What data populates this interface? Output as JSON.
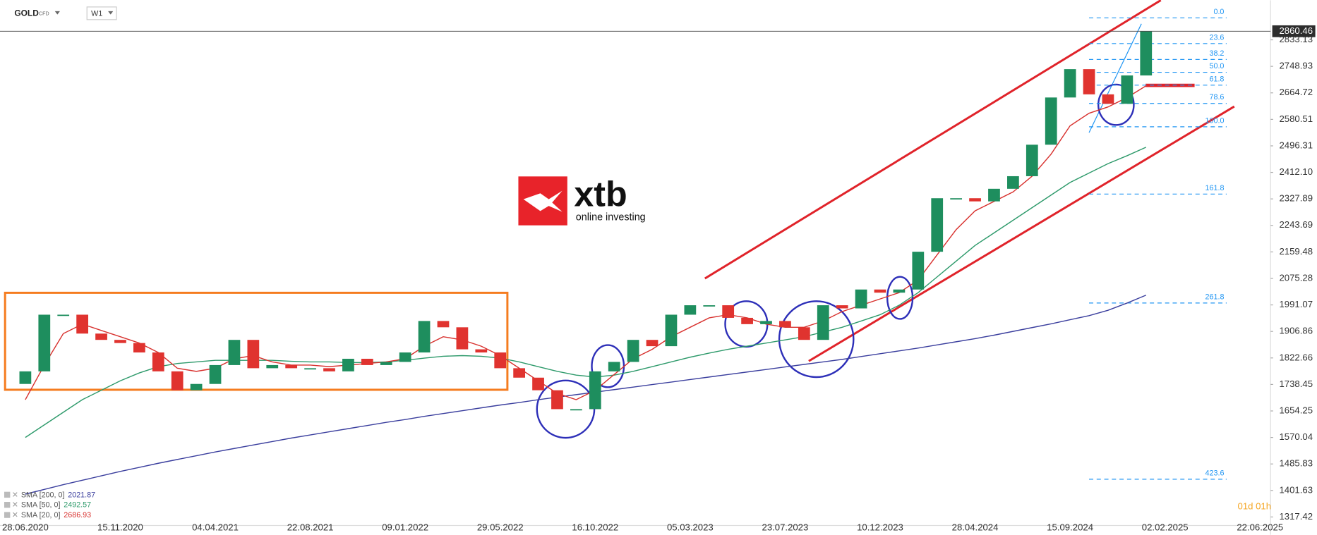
{
  "header": {
    "symbol": "GOLD",
    "kind": "CFD",
    "interval": "W1"
  },
  "logo": {
    "brand": "xtb",
    "tagline": "online investing"
  },
  "countdown": "01d 01h",
  "chart_data": {
    "type": "candlestick",
    "up_color": "#1e8e5e",
    "down_color": "#e0332f",
    "categories": [
      "28.06.2020",
      null,
      null,
      null,
      null,
      "15.11.2020",
      null,
      null,
      null,
      null,
      "04.04.2021",
      null,
      null,
      null,
      null,
      "22.08.2021",
      null,
      null,
      null,
      null,
      "09.01.2022",
      null,
      null,
      null,
      null,
      "29.05.2022",
      null,
      null,
      null,
      null,
      "16.10.2022",
      null,
      null,
      null,
      null,
      "05.03.2023",
      null,
      null,
      null,
      null,
      "23.07.2023",
      null,
      null,
      null,
      null,
      "10.12.2023",
      null,
      null,
      null,
      null,
      "28.04.2024",
      null,
      null,
      null,
      null,
      "15.09.2024",
      null,
      null,
      null,
      null,
      "02.02.2025",
      null,
      null,
      null,
      null,
      "22.06.2025"
    ],
    "open": [
      1740,
      1780,
      1960,
      1960,
      1900,
      1880,
      1870,
      1840,
      1780,
      1720,
      1740,
      1800,
      1880,
      1790,
      1800,
      1790,
      1790,
      1780,
      1820,
      1800,
      1810,
      1840,
      1940,
      1920,
      1850,
      1840,
      1790,
      1760,
      1720,
      1660,
      1660,
      1780,
      1810,
      1880,
      1860,
      1960,
      1990,
      1990,
      1950,
      1930,
      1940,
      1920,
      1880,
      1990,
      1980,
      2040,
      2030,
      2040,
      2160,
      2330,
      2330,
      2320,
      2360,
      2400,
      2500,
      2650,
      2740,
      2660,
      2630,
      2720,
      null,
      null,
      null,
      null,
      null,
      null
    ],
    "close": [
      1780,
      1960,
      1960,
      1900,
      1880,
      1870,
      1840,
      1780,
      1720,
      1740,
      1800,
      1880,
      1790,
      1800,
      1790,
      1790,
      1780,
      1820,
      1800,
      1810,
      1840,
      1940,
      1920,
      1850,
      1840,
      1790,
      1760,
      1720,
      1660,
      1660,
      1780,
      1810,
      1880,
      1860,
      1960,
      1990,
      1990,
      1950,
      1930,
      1940,
      1920,
      1880,
      1990,
      1980,
      2040,
      2030,
      2040,
      2160,
      2330,
      2330,
      2320,
      2360,
      2400,
      2500,
      2650,
      2740,
      2660,
      2630,
      2720,
      2860,
      null,
      null,
      null,
      null,
      null,
      null
    ],
    "series": [
      {
        "name": "SMA [200, 0]",
        "color": "#3b3f9e",
        "last": 2021.87,
        "values": [
          1390,
          1405,
          1420,
          1434,
          1448,
          1462,
          1475,
          1488,
          1500,
          1512,
          1524,
          1535,
          1546,
          1557,
          1568,
          1578,
          1588,
          1598,
          1608,
          1618,
          1627,
          1637,
          1646,
          1655,
          1664,
          1673,
          1681,
          1690,
          1698,
          1706,
          1714,
          1722,
          1730,
          1738,
          1746,
          1754,
          1762,
          1770,
          1778,
          1786,
          1794,
          1802,
          1810,
          1818,
          1827,
          1836,
          1845,
          1854,
          1864,
          1874,
          1884,
          1895,
          1907,
          1919,
          1931,
          1944,
          1957,
          1974,
          1997,
          2022,
          null,
          null,
          null,
          null,
          null,
          null
        ]
      },
      {
        "name": "SMA [50, 0]",
        "color": "#2e9a6b",
        "last": 2492.57,
        "values": [
          1570,
          1610,
          1650,
          1690,
          1720,
          1750,
          1775,
          1795,
          1805,
          1810,
          1815,
          1815,
          1815,
          1815,
          1812,
          1810,
          1810,
          1808,
          1808,
          1810,
          1815,
          1822,
          1828,
          1830,
          1828,
          1822,
          1810,
          1795,
          1780,
          1768,
          1762,
          1768,
          1780,
          1795,
          1810,
          1825,
          1838,
          1850,
          1860,
          1870,
          1880,
          1890,
          1905,
          1920,
          1940,
          1960,
          1990,
          2030,
          2080,
          2130,
          2180,
          2220,
          2260,
          2300,
          2340,
          2380,
          2410,
          2440,
          2465,
          2492,
          null,
          null,
          null,
          null,
          null,
          null
        ]
      },
      {
        "name": "SMA [20, 0]",
        "color": "#d8322f",
        "last": 2686.93,
        "values": [
          1690,
          1800,
          1900,
          1930,
          1910,
          1890,
          1870,
          1840,
          1790,
          1780,
          1790,
          1820,
          1830,
          1810,
          1800,
          1800,
          1795,
          1800,
          1805,
          1810,
          1820,
          1860,
          1890,
          1880,
          1860,
          1830,
          1790,
          1750,
          1710,
          1690,
          1720,
          1770,
          1820,
          1850,
          1890,
          1920,
          1950,
          1960,
          1950,
          1930,
          1920,
          1920,
          1940,
          1970,
          1990,
          2010,
          2030,
          2070,
          2150,
          2230,
          2290,
          2320,
          2350,
          2400,
          2470,
          2560,
          2600,
          2620,
          2650,
          2687,
          null,
          null,
          null,
          null,
          null,
          null
        ]
      }
    ],
    "last_price": 2860.46,
    "ylim": [
      1293,
      2959
    ],
    "yticks": [
      2833.13,
      2748.93,
      2664.72,
      2580.51,
      2496.31,
      {
        "value": 2412.1,
        "label": "2412.10"
      },
      2327.89,
      2243.69,
      2159.48,
      2075.28,
      1991.07,
      1906.86,
      1822.66,
      1738.45,
      1654.25,
      1570.04,
      1485.83,
      1401.63,
      1317.42
    ],
    "fibonacci": {
      "color": "#2196f3",
      "range": [
        2903,
        2557
      ],
      "levels": [
        {
          "value": 0,
          "label": "0.0"
        },
        23.6,
        38.2,
        {
          "value": 50,
          "label": "50.0"
        },
        61.8,
        78.6,
        {
          "value": 100,
          "label": "100.0"
        },
        161.8,
        261.8,
        423.6
      ]
    }
  }
}
